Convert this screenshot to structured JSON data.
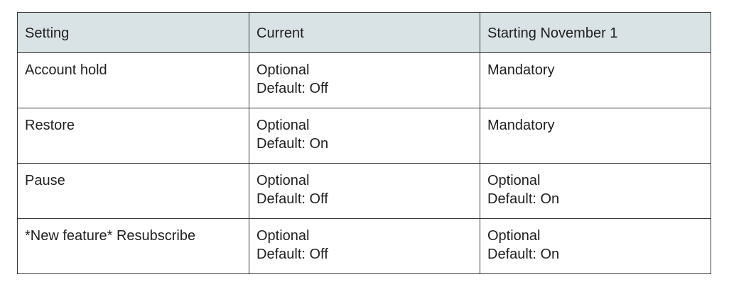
{
  "table": {
    "headers": [
      "Setting",
      "Current",
      "Starting November 1"
    ],
    "rows": [
      {
        "setting": "Account hold",
        "current": [
          "Optional",
          "Default: Off"
        ],
        "starting": [
          "Mandatory"
        ]
      },
      {
        "setting": "Restore",
        "current": [
          "Optional",
          "Default: On"
        ],
        "starting": [
          "Mandatory"
        ]
      },
      {
        "setting": "Pause",
        "current": [
          "Optional",
          "Default: Off"
        ],
        "starting": [
          "Optional",
          "Default: On"
        ]
      },
      {
        "setting": "*New feature* Resubscribe",
        "current": [
          "Optional",
          "Default: Off"
        ],
        "starting": [
          "Optional",
          "Default: On"
        ]
      }
    ]
  },
  "colors": {
    "header_background": "#d9e2e4",
    "border": "#3a3a3a",
    "text": "#1f1f1f"
  }
}
